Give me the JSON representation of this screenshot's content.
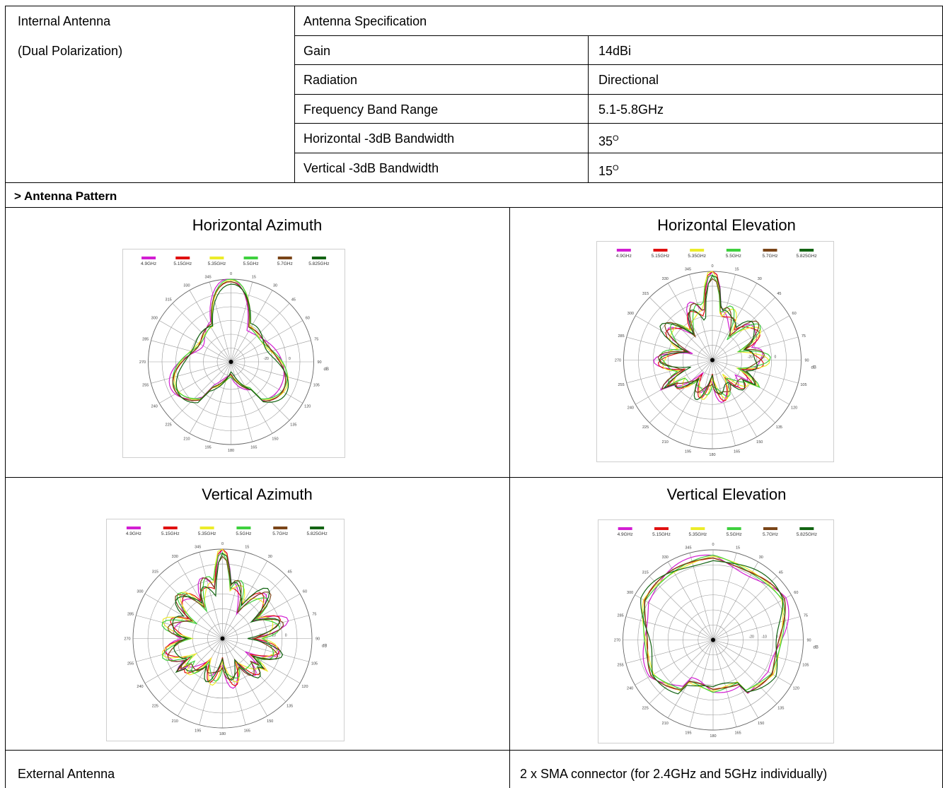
{
  "spec": {
    "internal_antenna": "Internal Antenna",
    "polarization": "(Dual Polarization)",
    "heading": "Antenna Specification",
    "rows": [
      {
        "label": "Gain",
        "value": "14dBi",
        "sup": ""
      },
      {
        "label": "Radiation",
        "value": "Directional",
        "sup": ""
      },
      {
        "label": "Frequency Band Range",
        "value": "5.1-5.8GHz",
        "sup": ""
      },
      {
        "label": "Horizontal -3dB Bandwidth",
        "value": "35",
        "sup": "O"
      },
      {
        "label": "Vertical -3dB Bandwidth",
        "value": "15",
        "sup": "O"
      }
    ]
  },
  "pattern_heading": "> Antenna Pattern",
  "plots": [
    {
      "title": "Horizontal Azimuth"
    },
    {
      "title": "Horizontal Elevation"
    },
    {
      "title": "Vertical Azimuth"
    },
    {
      "title": "Vertical Elevation"
    }
  ],
  "legend": [
    {
      "label": "4.9GHz",
      "color": "#d21ed2"
    },
    {
      "label": "5.15GHz",
      "color": "#e01010"
    },
    {
      "label": "5.35GHz",
      "color": "#ecec2a"
    },
    {
      "label": "5.5GHz",
      "color": "#3ed03e"
    },
    {
      "label": "5.7GHz",
      "color": "#7a4518"
    },
    {
      "label": "5.825GHz",
      "color": "#136413"
    }
  ],
  "angle_labels": [
    "0",
    "15",
    "30",
    "45",
    "60",
    "75",
    "90",
    "105",
    "120",
    "135",
    "150",
    "165",
    "180",
    "195",
    "210",
    "225",
    "240",
    "255",
    "270",
    "285",
    "300",
    "315",
    "330",
    "345"
  ],
  "ring_labels": [
    "-20",
    "-10",
    "0"
  ],
  "db_label": "dB",
  "external": {
    "label": "External Antenna",
    "value": "2 x SMA connector (for 2.4GHz and 5GHz individually)"
  }
}
